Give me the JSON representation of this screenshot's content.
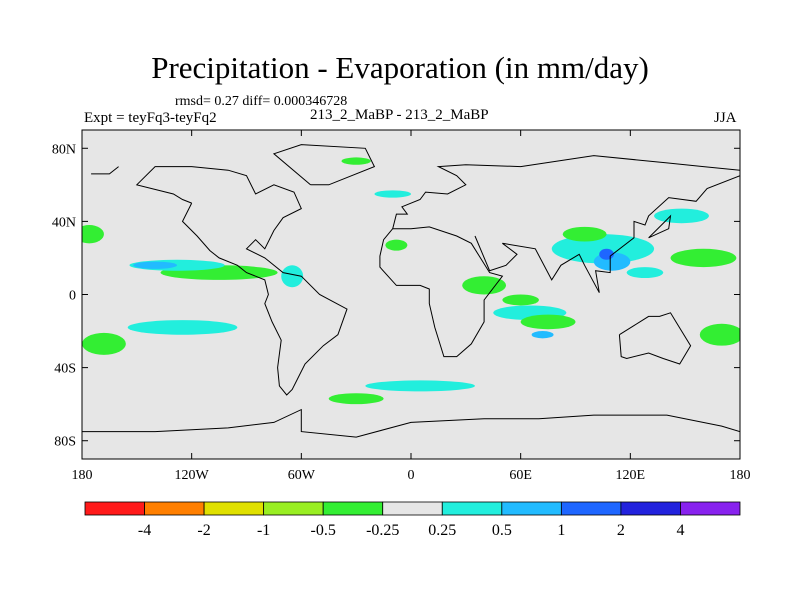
{
  "chart_data": {
    "type": "heatmap",
    "title": "Precipitation - Evaporation (in mm/day)",
    "stats_text": "rmsd= 0.27 diff= 0.000346728",
    "left_label": "Expt = teyFq3-teyFq2",
    "center_label": "213_2_MaBP - 213_2_MaBP",
    "right_label": "JJA",
    "xlim": [
      -180,
      180
    ],
    "ylim": [
      -90,
      90
    ],
    "x_ticks": [
      {
        "value": -180,
        "label": "180"
      },
      {
        "value": -120,
        "label": "120W"
      },
      {
        "value": -60,
        "label": "60W"
      },
      {
        "value": 0,
        "label": "0"
      },
      {
        "value": 60,
        "label": "60E"
      },
      {
        "value": 120,
        "label": "120E"
      },
      {
        "value": 180,
        "label": "180"
      }
    ],
    "y_ticks": [
      {
        "value": 80,
        "label": "80N"
      },
      {
        "value": 40,
        "label": "40N"
      },
      {
        "value": 0,
        "label": "0"
      },
      {
        "value": -40,
        "label": "40S"
      },
      {
        "value": -80,
        "label": "80S"
      }
    ],
    "background_color": "#e6e6e6",
    "colorbar": {
      "levels": [
        "-4",
        "-2",
        "-1",
        "-0.5",
        "-0.25",
        "0.25",
        "0.5",
        "1",
        "2",
        "4"
      ],
      "colors": [
        "#ff1a1a",
        "#ff7f00",
        "#e0e000",
        "#99ee22",
        "#33ee33",
        "#e6e6e6",
        "#22eedd",
        "#22bbff",
        "#1e66ff",
        "#2222dd",
        "#8822ee"
      ]
    },
    "regions": [
      {
        "name": "east-pacific-itcz-green",
        "cat": 4,
        "lon": -105,
        "lat": 12,
        "rx": 32,
        "ry": 4
      },
      {
        "name": "east-pacific-itcz-cyan",
        "cat": 6,
        "lon": -128,
        "lat": 16,
        "rx": 26,
        "ry": 3
      },
      {
        "name": "east-pacific-itcz-blue",
        "cat": 7,
        "lon": -140,
        "lat": 16,
        "rx": 12,
        "ry": 2
      },
      {
        "name": "north-pacific-green",
        "cat": 4,
        "lon": -176,
        "lat": 33,
        "rx": 8,
        "ry": 5
      },
      {
        "name": "south-pacific-cyan",
        "cat": 6,
        "lon": -125,
        "lat": -18,
        "rx": 30,
        "ry": 4
      },
      {
        "name": "south-pacific-green",
        "cat": 4,
        "lon": -168,
        "lat": -27,
        "rx": 12,
        "ry": 6
      },
      {
        "name": "central-america-cyan",
        "cat": 6,
        "lon": -65,
        "lat": 10,
        "rx": 6,
        "ry": 6
      },
      {
        "name": "west-africa-green",
        "cat": 4,
        "lon": -8,
        "lat": 27,
        "rx": 6,
        "ry": 3
      },
      {
        "name": "arabian-sea-green",
        "cat": 4,
        "lon": 40,
        "lat": 5,
        "rx": 12,
        "ry": 5
      },
      {
        "name": "equatorial-indian-cyan",
        "cat": 6,
        "lon": 65,
        "lat": -10,
        "rx": 20,
        "ry": 4
      },
      {
        "name": "south-indian-green",
        "cat": 4,
        "lon": 75,
        "lat": -15,
        "rx": 15,
        "ry": 4
      },
      {
        "name": "indian-ocean-blue",
        "cat": 7,
        "lon": 72,
        "lat": -22,
        "rx": 6,
        "ry": 2
      },
      {
        "name": "west-australia-green",
        "cat": 4,
        "lon": 60,
        "lat": -3,
        "rx": 10,
        "ry": 3
      },
      {
        "name": "east-asia-cyan",
        "cat": 6,
        "lon": 105,
        "lat": 25,
        "rx": 28,
        "ry": 8
      },
      {
        "name": "east-asia-blue",
        "cat": 7,
        "lon": 110,
        "lat": 18,
        "rx": 10,
        "ry": 5
      },
      {
        "name": "east-asia-darkblue",
        "cat": 8,
        "lon": 107,
        "lat": 22,
        "rx": 4,
        "ry": 3
      },
      {
        "name": "northwest-pacific-green",
        "cat": 4,
        "lon": 160,
        "lat": 20,
        "rx": 18,
        "ry": 5
      },
      {
        "name": "kuroshio-cyan",
        "cat": 6,
        "lon": 148,
        "lat": 43,
        "rx": 15,
        "ry": 4
      },
      {
        "name": "west-pacific-cyan",
        "cat": 6,
        "lon": 128,
        "lat": 12,
        "rx": 10,
        "ry": 3
      },
      {
        "name": "tibet-green",
        "cat": 4,
        "lon": 95,
        "lat": 33,
        "rx": 12,
        "ry": 4
      },
      {
        "name": "eastern-australia-green",
        "cat": 4,
        "lon": 170,
        "lat": -22,
        "rx": 12,
        "ry": 6
      },
      {
        "name": "southern-ocean-cyan",
        "cat": 6,
        "lon": 5,
        "lat": -50,
        "rx": 30,
        "ry": 3
      },
      {
        "name": "atlantic-north-cyan",
        "cat": 6,
        "lon": -10,
        "lat": 55,
        "rx": 10,
        "ry": 2
      },
      {
        "name": "arctic-green",
        "cat": 4,
        "lon": -30,
        "lat": 73,
        "rx": 8,
        "ry": 2
      },
      {
        "name": "southern-ocean-green",
        "cat": 4,
        "lon": -30,
        "lat": -57,
        "rx": 15,
        "ry": 3
      }
    ],
    "coastline": [
      [
        [
          -120,
          50
        ],
        [
          -125,
          40
        ],
        [
          -117,
          32
        ],
        [
          -110,
          24
        ],
        [
          -105,
          20
        ],
        [
          -95,
          16
        ],
        [
          -90,
          12
        ],
        [
          -85,
          10
        ],
        [
          -80,
          8
        ],
        [
          -78,
          0
        ],
        [
          -80,
          -5
        ],
        [
          -76,
          -15
        ],
        [
          -71,
          -25
        ],
        [
          -73,
          -40
        ],
        [
          -72,
          -50
        ],
        [
          -68,
          -55
        ],
        [
          -65,
          -52
        ],
        [
          -58,
          -38
        ],
        [
          -48,
          -28
        ],
        [
          -40,
          -22
        ],
        [
          -35,
          -8
        ],
        [
          -50,
          0
        ],
        [
          -60,
          10
        ],
        [
          -70,
          12
        ],
        [
          -80,
          20
        ],
        [
          -90,
          25
        ],
        [
          -85,
          30
        ],
        [
          -80,
          25
        ],
        [
          -75,
          35
        ],
        [
          -70,
          42
        ],
        [
          -60,
          47
        ],
        [
          -64,
          56
        ],
        [
          -75,
          60
        ],
        [
          -85,
          55
        ],
        [
          -90,
          65
        ],
        [
          -100,
          68
        ],
        [
          -120,
          70
        ],
        [
          -140,
          70
        ],
        [
          -150,
          60
        ],
        [
          -130,
          55
        ],
        [
          -125,
          52
        ],
        [
          -120,
          50
        ]
      ],
      [
        [
          -55,
          60
        ],
        [
          -45,
          60
        ],
        [
          -20,
          70
        ],
        [
          -25,
          80
        ],
        [
          -60,
          82
        ],
        [
          -75,
          77
        ],
        [
          -55,
          60
        ]
      ],
      [
        [
          -10,
          36
        ],
        [
          -15,
          30
        ],
        [
          -17,
          21
        ],
        [
          -17,
          15
        ],
        [
          -8,
          5
        ],
        [
          5,
          5
        ],
        [
          10,
          3
        ],
        [
          10,
          -5
        ],
        [
          13,
          -18
        ],
        [
          18,
          -34
        ],
        [
          25,
          -34
        ],
        [
          33,
          -27
        ],
        [
          40,
          -15
        ],
        [
          40,
          -3
        ],
        [
          50,
          10
        ],
        [
          43,
          12
        ],
        [
          33,
          28
        ],
        [
          25,
          32
        ],
        [
          10,
          37
        ],
        [
          0,
          36
        ],
        [
          -5,
          36
        ],
        [
          -10,
          36
        ]
      ],
      [
        [
          -10,
          36
        ],
        [
          -8,
          44
        ],
        [
          -2,
          44
        ],
        [
          -5,
          48
        ],
        [
          5,
          52
        ],
        [
          8,
          56
        ],
        [
          20,
          55
        ],
        [
          30,
          60
        ],
        [
          25,
          65
        ],
        [
          15,
          70
        ],
        [
          30,
          71
        ],
        [
          60,
          70
        ],
        [
          80,
          73
        ],
        [
          100,
          76
        ],
        [
          140,
          72
        ],
        [
          160,
          70
        ],
        [
          180,
          68
        ]
      ],
      [
        [
          35,
          32
        ],
        [
          43,
          13
        ],
        [
          52,
          16
        ],
        [
          58,
          22
        ],
        [
          50,
          28
        ],
        [
          68,
          25
        ],
        [
          77,
          8
        ],
        [
          82,
          16
        ],
        [
          92,
          22
        ],
        [
          95,
          16
        ],
        [
          103,
          1
        ],
        [
          101,
          13
        ],
        [
          109,
          12
        ],
        [
          109,
          21
        ],
        [
          122,
          31
        ],
        [
          122,
          40
        ],
        [
          128,
          38
        ],
        [
          130,
          43
        ],
        [
          141,
          53
        ],
        [
          156,
          51
        ],
        [
          162,
          58
        ],
        [
          180,
          65
        ]
      ],
      [
        [
          114,
          -22
        ],
        [
          115,
          -34
        ],
        [
          118,
          -35
        ],
        [
          130,
          -32
        ],
        [
          138,
          -35
        ],
        [
          147,
          -38
        ],
        [
          153,
          -28
        ],
        [
          145,
          -15
        ],
        [
          142,
          -10
        ],
        [
          136,
          -12
        ],
        [
          130,
          -12
        ],
        [
          122,
          -17
        ],
        [
          114,
          -22
        ]
      ],
      [
        [
          -180,
          -75
        ],
        [
          -140,
          -75
        ],
        [
          -100,
          -73
        ],
        [
          -75,
          -70
        ],
        [
          -60,
          -63
        ],
        [
          -60,
          -75
        ],
        [
          -30,
          -78
        ],
        [
          0,
          -70
        ],
        [
          40,
          -68
        ],
        [
          70,
          -68
        ],
        [
          100,
          -66
        ],
        [
          140,
          -66
        ],
        [
          170,
          -72
        ],
        [
          180,
          -75
        ]
      ],
      [
        [
          -175,
          66
        ],
        [
          -165,
          66
        ],
        [
          -160,
          70
        ]
      ],
      [
        [
          130,
          31
        ],
        [
          141,
          36
        ],
        [
          142,
          43
        ],
        [
          140,
          41
        ],
        [
          133,
          34
        ],
        [
          130,
          31
        ]
      ]
    ]
  }
}
